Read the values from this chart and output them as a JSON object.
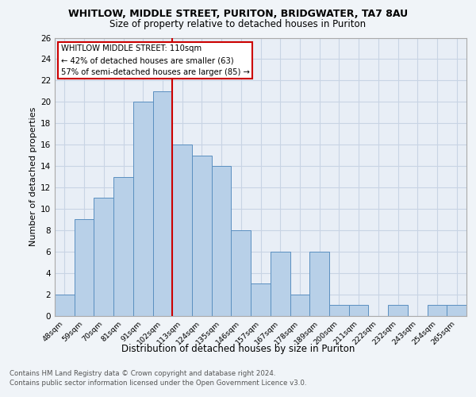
{
  "title": "WHITLOW, MIDDLE STREET, PURITON, BRIDGWATER, TA7 8AU",
  "subtitle": "Size of property relative to detached houses in Puriton",
  "xlabel": "Distribution of detached houses by size in Puriton",
  "ylabel": "Number of detached properties",
  "categories": [
    "48sqm",
    "59sqm",
    "70sqm",
    "81sqm",
    "91sqm",
    "102sqm",
    "113sqm",
    "124sqm",
    "135sqm",
    "146sqm",
    "157sqm",
    "167sqm",
    "178sqm",
    "189sqm",
    "200sqm",
    "211sqm",
    "222sqm",
    "232sqm",
    "243sqm",
    "254sqm",
    "265sqm"
  ],
  "values": [
    2,
    9,
    11,
    13,
    20,
    21,
    16,
    15,
    14,
    8,
    3,
    6,
    2,
    6,
    1,
    1,
    0,
    1,
    0,
    1,
    1
  ],
  "bar_color": "#b8d0e8",
  "bar_edge_color": "#5a8fc0",
  "grid_color": "#c8d4e4",
  "background_color": "#f0f4f8",
  "plot_bg_color": "#e8eef6",
  "property_label": "WHITLOW MIDDLE STREET: 110sqm",
  "annotation_line1": "← 42% of detached houses are smaller (63)",
  "annotation_line2": "57% of semi-detached houses are larger (85) →",
  "vline_index": 6,
  "vline_color": "#cc0000",
  "annotation_box_color": "#cc0000",
  "ylim": [
    0,
    26
  ],
  "yticks": [
    0,
    2,
    4,
    6,
    8,
    10,
    12,
    14,
    16,
    18,
    20,
    22,
    24,
    26
  ],
  "footnote1": "Contains HM Land Registry data © Crown copyright and database right 2024.",
  "footnote2": "Contains public sector information licensed under the Open Government Licence v3.0."
}
